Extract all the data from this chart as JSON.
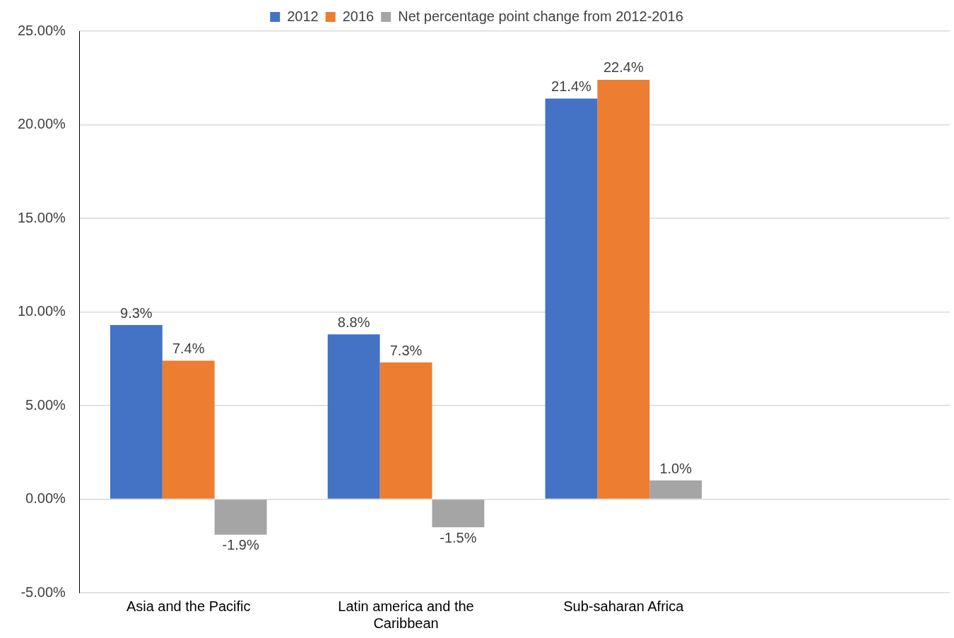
{
  "chart_data": {
    "type": "bar",
    "categories": [
      "Asia and the Pacific",
      "Latin america and the Caribbean",
      "Sub-saharan Africa",
      null
    ],
    "series": [
      {
        "name": "2012",
        "color": "#4472c4",
        "values": [
          9.3,
          8.8,
          21.4,
          null
        ],
        "value_labels": [
          "9.3%",
          "8.8%",
          "21.4%",
          null
        ]
      },
      {
        "name": "2016",
        "color": "#ed7d31",
        "values": [
          7.4,
          7.3,
          22.4,
          null
        ],
        "value_labels": [
          "7.4%",
          "7.3%",
          "22.4%",
          null
        ]
      },
      {
        "name": "Net percentage point change from 2012-2016",
        "color": "#a5a5a5",
        "values": [
          -1.9,
          -1.5,
          1.0,
          null
        ],
        "value_labels": [
          "-1.9%",
          "-1.5%",
          "1.0%",
          null
        ]
      }
    ],
    "ylim": [
      -5,
      25
    ],
    "yticks": [
      {
        "value": -5,
        "label": "-5.00%"
      },
      {
        "value": 0,
        "label": "0.00%"
      },
      {
        "value": 5,
        "label": "5.00%"
      },
      {
        "value": 10,
        "label": "10.00%"
      },
      {
        "value": 15,
        "label": "15.00%"
      },
      {
        "value": 20,
        "label": "20.00%"
      },
      {
        "value": 25,
        "label": "25.00%"
      }
    ],
    "grid": "y",
    "legend": "top"
  }
}
